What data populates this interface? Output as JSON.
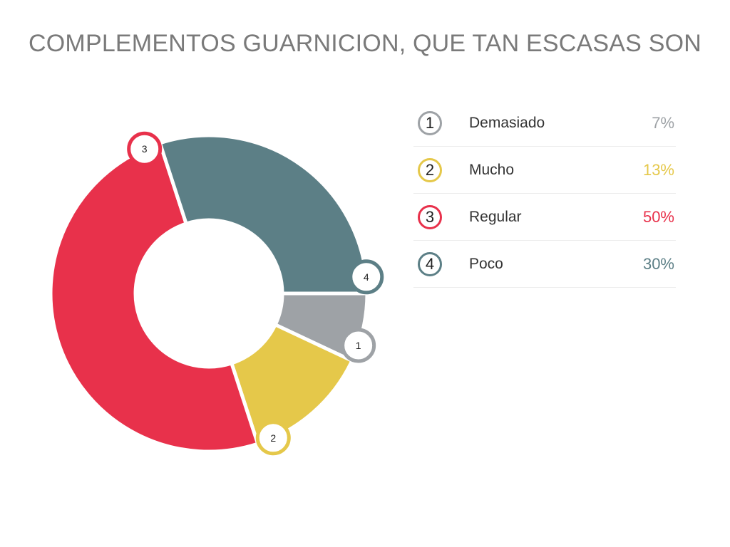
{
  "chart_data": {
    "type": "pie",
    "title": "COMPLEMENTOS GUARNICION, QUE TAN ESCASAS SON",
    "legend_position": "right",
    "slices": [
      {
        "id": "1",
        "label": "Demasiado",
        "value": 7,
        "display": "7%",
        "color": "#9ea2a6"
      },
      {
        "id": "2",
        "label": "Mucho",
        "value": 13,
        "display": "13%",
        "color": "#e5c84a"
      },
      {
        "id": "3",
        "label": "Regular",
        "value": 50,
        "display": "50%",
        "color": "#e8314b"
      },
      {
        "id": "4",
        "label": "Poco",
        "value": 30,
        "display": "30%",
        "color": "#5c7f86"
      }
    ]
  }
}
